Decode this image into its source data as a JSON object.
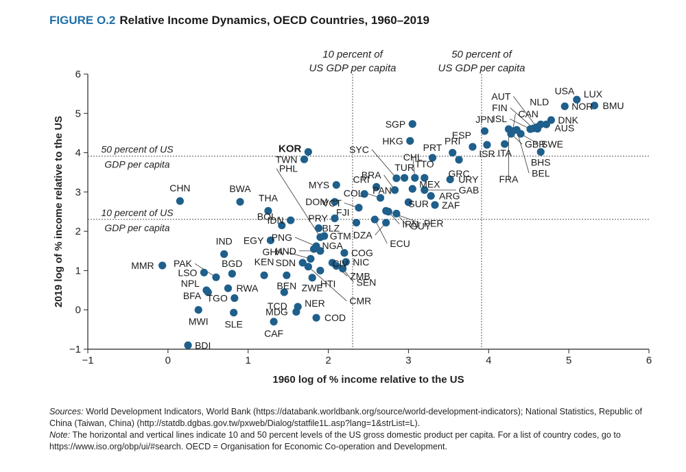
{
  "figure_label": "FIGURE O.2",
  "figure_title": "Relative Income Dynamics, OECD Countries, 1960–2019",
  "sources_label": "Sources:",
  "sources_text": "World Development Indicators, World Bank (https://databank.worldbank.org/source/world-development-indicators); National Statistics, Republic of China (Taiwan, China) (http://statdb.dgbas.gov.tw/pxweb/Dialog/statfile1L.asp?lang=1&strList=L).",
  "note_label": "Note:",
  "note_text": "The horizontal and vertical lines indicate 10 and 50 percent levels of the US gross domestic product per capita. For a list of country codes, go to https://www.iso.org/obp/ui/#search. OECD = Organisation for Economic Co-operation and Development.",
  "colors": {
    "point": "#1f5f8b",
    "title_accent": "#1f6fa8",
    "axis": "#222222",
    "guide": "#555555"
  },
  "chart_data": {
    "type": "scatter",
    "title": "Relative Income Dynamics, OECD Countries, 1960–2019",
    "xlabel": "1960 log of % income relative to the US",
    "ylabel": "2019 log of % income relative to the US",
    "xlim": [
      -1,
      6
    ],
    "ylim": [
      -1,
      6
    ],
    "xticks": [
      -1,
      0,
      1,
      2,
      3,
      4,
      5,
      6
    ],
    "yticks": [
      -1,
      0,
      1,
      2,
      3,
      4,
      5,
      6
    ],
    "grid": false,
    "reference_lines": [
      {
        "orientation": "vertical",
        "value": 2.303,
        "label": [
          "10 percent of",
          "US GDP per capita"
        ]
      },
      {
        "orientation": "vertical",
        "value": 3.912,
        "label": [
          "50 percent of",
          "US GDP per capita"
        ]
      },
      {
        "orientation": "horizontal",
        "value": 3.912,
        "label": [
          "50 percent of US",
          "GDP per capita"
        ]
      },
      {
        "orientation": "horizontal",
        "value": 2.303,
        "label": [
          "10 percent of US",
          "GDP per capita"
        ]
      }
    ],
    "points": [
      {
        "code": "USA",
        "x": 4.61,
        "y": 4.61
      },
      {
        "code": "LUX",
        "x": 5.1,
        "y": 5.35
      },
      {
        "code": "BMU",
        "x": 5.32,
        "y": 5.2
      },
      {
        "code": "NOR",
        "x": 4.95,
        "y": 5.18
      },
      {
        "code": "DNK",
        "x": 4.78,
        "y": 4.83
      },
      {
        "code": "AUS",
        "x": 4.72,
        "y": 4.72
      },
      {
        "code": "NLD",
        "x": 4.65,
        "y": 4.72
      },
      {
        "code": "AUT",
        "x": 4.6,
        "y": 4.65
      },
      {
        "code": "FIN",
        "x": 4.56,
        "y": 4.62
      },
      {
        "code": "ISL",
        "x": 4.52,
        "y": 4.6
      },
      {
        "code": "CAN",
        "x": 4.3,
        "y": 4.55
      },
      {
        "code": "SWE",
        "x": 4.4,
        "y": 4.48
      },
      {
        "code": "GBR",
        "x": 4.28,
        "y": 4.48
      },
      {
        "code": "JPN",
        "x": 3.95,
        "y": 4.55
      },
      {
        "code": "BEL",
        "x": 4.35,
        "y": 4.58
      },
      {
        "code": "FRA",
        "x": 4.25,
        "y": 4.6
      },
      {
        "code": "ISR",
        "x": 3.98,
        "y": 4.2
      },
      {
        "code": "ITA",
        "x": 4.2,
        "y": 4.22
      },
      {
        "code": "ESP",
        "x": 3.8,
        "y": 4.15
      },
      {
        "code": "BHS",
        "x": 4.65,
        "y": 4.02
      },
      {
        "code": "PRI",
        "x": 3.55,
        "y": 4.0
      },
      {
        "code": "SGP",
        "x": 3.05,
        "y": 4.73
      },
      {
        "code": "HKG",
        "x": 3.02,
        "y": 4.3
      },
      {
        "code": "KOR",
        "x": 1.75,
        "y": 4.02
      },
      {
        "code": "TWN",
        "x": 1.7,
        "y": 3.83
      },
      {
        "code": "PRT",
        "x": 3.3,
        "y": 3.87
      },
      {
        "code": "GRC",
        "x": 3.63,
        "y": 3.82
      },
      {
        "code": "SYC",
        "x": 2.85,
        "y": 3.35
      },
      {
        "code": "CHL",
        "x": 3.08,
        "y": 3.36
      },
      {
        "code": "TTO",
        "x": 3.2,
        "y": 3.36
      },
      {
        "code": "TUR",
        "x": 2.95,
        "y": 3.36
      },
      {
        "code": "URY",
        "x": 3.52,
        "y": 3.32
      },
      {
        "code": "BRA",
        "x": 2.83,
        "y": 3.05
      },
      {
        "code": "MEX",
        "x": 3.05,
        "y": 3.08
      },
      {
        "code": "CRI",
        "x": 2.6,
        "y": 3.13
      },
      {
        "code": "GAB",
        "x": 3.2,
        "y": 3.05
      },
      {
        "code": "ARG",
        "x": 3.28,
        "y": 2.9
      },
      {
        "code": "MYS",
        "x": 2.1,
        "y": 3.18
      },
      {
        "code": "PAN",
        "x": 2.45,
        "y": 2.95
      },
      {
        "code": "COL",
        "x": 2.65,
        "y": 2.85
      },
      {
        "code": "SUR",
        "x": 3.0,
        "y": 2.74
      },
      {
        "code": "ZAF",
        "x": 3.33,
        "y": 2.67
      },
      {
        "code": "DOM",
        "x": 2.08,
        "y": 2.75
      },
      {
        "code": "VCT",
        "x": 2.38,
        "y": 2.6
      },
      {
        "code": "FJI",
        "x": 2.35,
        "y": 2.22
      },
      {
        "code": "PER",
        "x": 2.72,
        "y": 2.52
      },
      {
        "code": "IRN",
        "x": 2.75,
        "y": 2.5
      },
      {
        "code": "BOL",
        "x": 1.42,
        "y": 2.15
      },
      {
        "code": "PRY",
        "x": 2.08,
        "y": 2.33
      },
      {
        "code": "BLZ",
        "x": 1.88,
        "y": 2.08
      },
      {
        "code": "DZA",
        "x": 2.72,
        "y": 2.22
      },
      {
        "code": "GUY",
        "x": 2.85,
        "y": 2.45
      },
      {
        "code": "ECU",
        "x": 2.58,
        "y": 2.3
      },
      {
        "code": "IDN",
        "x": 1.53,
        "y": 2.28
      },
      {
        "code": "GTM",
        "x": 1.95,
        "y": 1.88
      },
      {
        "code": "PHL",
        "x": 1.9,
        "y": 1.85
      },
      {
        "code": "EGY",
        "x": 1.28,
        "y": 1.77
      },
      {
        "code": "PNG",
        "x": 1.85,
        "y": 1.62
      },
      {
        "code": "HND",
        "x": 1.9,
        "y": 1.5
      },
      {
        "code": "NGA",
        "x": 1.82,
        "y": 1.55
      },
      {
        "code": "COG",
        "x": 2.2,
        "y": 1.45
      },
      {
        "code": "GHA",
        "x": 1.78,
        "y": 1.3
      },
      {
        "code": "CIV",
        "x": 2.05,
        "y": 1.2
      },
      {
        "code": "NIC",
        "x": 2.22,
        "y": 1.22
      },
      {
        "code": "SDN",
        "x": 1.68,
        "y": 1.2
      },
      {
        "code": "ZMB",
        "x": 2.1,
        "y": 1.12
      },
      {
        "code": "SEN",
        "x": 2.18,
        "y": 1.05
      },
      {
        "code": "HTI",
        "x": 1.9,
        "y": 1.0
      },
      {
        "code": "CMR",
        "x": 1.75,
        "y": 1.1
      },
      {
        "code": "CHN",
        "x": 0.15,
        "y": 2.77
      },
      {
        "code": "BWA",
        "x": 0.9,
        "y": 2.75
      },
      {
        "code": "THA",
        "x": 1.25,
        "y": 2.52
      },
      {
        "code": "IND",
        "x": 0.7,
        "y": 1.42
      },
      {
        "code": "MMR",
        "x": -0.07,
        "y": 1.13
      },
      {
        "code": "PAK",
        "x": 0.6,
        "y": 0.83
      },
      {
        "code": "BGD",
        "x": 0.8,
        "y": 0.92
      },
      {
        "code": "LSO",
        "x": 0.45,
        "y": 0.95
      },
      {
        "code": "KEN",
        "x": 1.2,
        "y": 0.88
      },
      {
        "code": "BEN",
        "x": 1.48,
        "y": 0.88
      },
      {
        "code": "ZWE",
        "x": 1.8,
        "y": 0.82
      },
      {
        "code": "NPL",
        "x": 0.48,
        "y": 0.5
      },
      {
        "code": "RWA",
        "x": 0.75,
        "y": 0.55
      },
      {
        "code": "BFA",
        "x": 0.5,
        "y": 0.45
      },
      {
        "code": "TGO",
        "x": 0.83,
        "y": 0.3
      },
      {
        "code": "TCD",
        "x": 1.45,
        "y": 0.45
      },
      {
        "code": "NER",
        "x": 1.62,
        "y": 0.08
      },
      {
        "code": "MDG",
        "x": 1.6,
        "y": -0.05
      },
      {
        "code": "MWI",
        "x": 0.38,
        "y": 0.0
      },
      {
        "code": "SLE",
        "x": 0.82,
        "y": -0.07
      },
      {
        "code": "COD",
        "x": 1.85,
        "y": -0.2
      },
      {
        "code": "CAF",
        "x": 1.32,
        "y": -0.3
      },
      {
        "code": "BDI",
        "x": 0.25,
        "y": -0.9
      }
    ]
  }
}
